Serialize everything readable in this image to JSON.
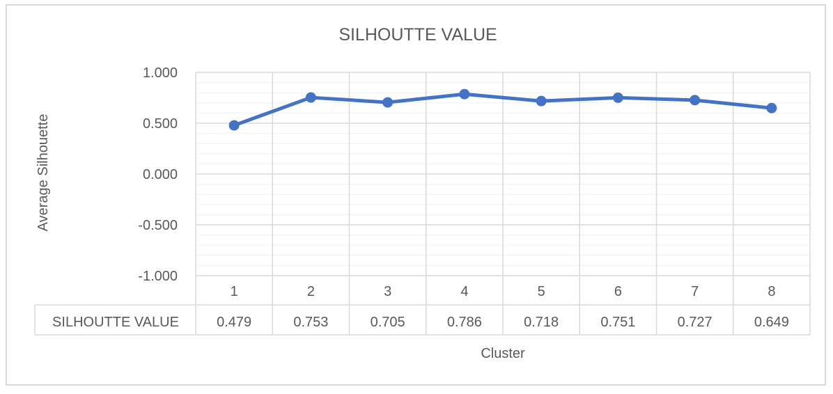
{
  "chart_data": {
    "type": "line",
    "title": "SILHOUTTE VALUE",
    "xlabel": "Cluster",
    "ylabel": "Average Silhouette",
    "categories": [
      "1",
      "2",
      "3",
      "4",
      "5",
      "6",
      "7",
      "8"
    ],
    "series": [
      {
        "name": "SILHOUTTE VALUE",
        "values": [
          0.479,
          0.753,
          0.705,
          0.786,
          0.718,
          0.751,
          0.727,
          0.649
        ]
      }
    ],
    "value_labels": [
      "0.479",
      "0.753",
      "0.705",
      "0.786",
      "0.718",
      "0.751",
      "0.727",
      "0.649"
    ],
    "ylim": [
      -1.0,
      1.0
    ],
    "yticks": [
      1.0,
      0.5,
      0.0,
      -0.5,
      -1.0
    ],
    "ytick_labels": [
      "1.000",
      "0.500",
      "0.000",
      "-0.500",
      "-1.000"
    ],
    "minor_gridlines": true,
    "grid": true,
    "data_table": true,
    "line_color": "#4472c4",
    "grid_color": "#d9d9d9",
    "minor_grid_color": "#f0f0f0"
  }
}
